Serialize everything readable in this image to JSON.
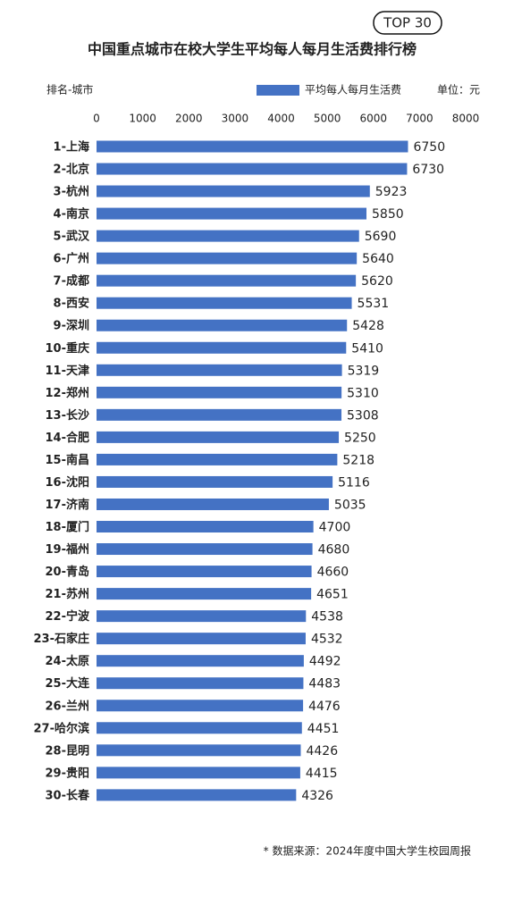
{
  "chart_data": {
    "type": "bar",
    "orientation": "horizontal",
    "badge": "TOP 30",
    "title": "中国重点城市在校大学生平均每人每月生活费排行榜",
    "y_axis_label": "排名-城市",
    "unit_label": "单位：元",
    "source_note": "* 数据来源：2024年度中国大学生校园周报",
    "categories": [
      "1-上海",
      "2-北京",
      "3-杭州",
      "4-南京",
      "5-武汉",
      "6-广州",
      "7-成都",
      "8-西安",
      "9-深圳",
      "10-重庆",
      "11-天津",
      "12-郑州",
      "13-长沙",
      "14-合肥",
      "15-南昌",
      "16-沈阳",
      "17-济南",
      "18-厦门",
      "19-福州",
      "20-青岛",
      "21-苏州",
      "22-宁波",
      "23-石家庄",
      "24-太原",
      "25-大连",
      "26-兰州",
      "27-哈尔滨",
      "28-昆明",
      "29-贵阳",
      "30-长春"
    ],
    "series": [
      {
        "name": "平均每人每月生活费",
        "color": "#4472c4",
        "values": [
          6750,
          6730,
          5923,
          5850,
          5690,
          5640,
          5620,
          5531,
          5428,
          5410,
          5319,
          5310,
          5308,
          5250,
          5218,
          5116,
          5035,
          4700,
          4680,
          4660,
          4651,
          4538,
          4532,
          4492,
          4483,
          4476,
          4451,
          4426,
          4415,
          4326
        ]
      }
    ],
    "xlim": [
      0,
      8000
    ],
    "xticks": [
      0,
      1000,
      2000,
      3000,
      4000,
      5000,
      6000,
      7000,
      8000
    ],
    "grid": false
  }
}
